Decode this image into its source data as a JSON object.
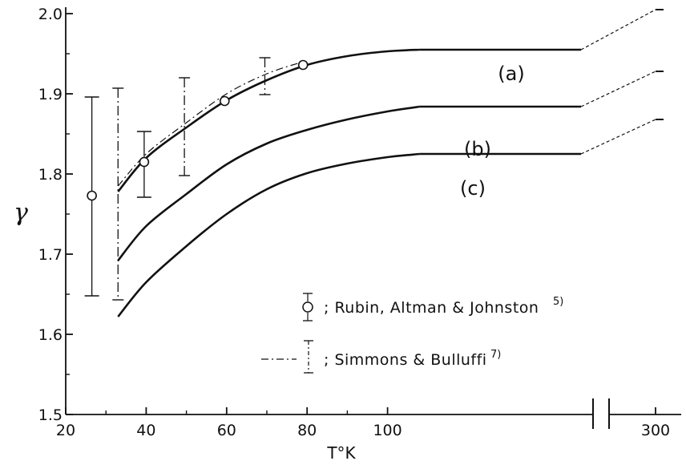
{
  "chart_data": {
    "type": "line",
    "title": "",
    "xlabel": "T°K",
    "ylabel": "γ",
    "ylim": [
      1.5,
      2.0
    ],
    "xlim_main": [
      20,
      108
    ],
    "x_break": "axis broken after 100, continuing to 300",
    "x_ticks": [
      "20",
      "40",
      "60",
      "80",
      "100",
      "300"
    ],
    "y_ticks": [
      "1.5",
      "1.6",
      "1.7",
      "1.8",
      "1.9",
      "2.0"
    ],
    "grid": false,
    "legend_placement": "lower-right",
    "series": [
      {
        "name": "(a)",
        "style": "solid",
        "points": [
          [
            33,
            1.778
          ],
          [
            40,
            1.82
          ],
          [
            50,
            1.858
          ],
          [
            60,
            1.892
          ],
          [
            70,
            1.917
          ],
          [
            80,
            1.936
          ],
          [
            90,
            1.947
          ],
          [
            100,
            1.953
          ],
          [
            108,
            1.955
          ]
        ],
        "extension_to_300": 2.005
      },
      {
        "name": "(b)",
        "style": "solid",
        "points": [
          [
            33,
            1.692
          ],
          [
            40,
            1.735
          ],
          [
            50,
            1.775
          ],
          [
            60,
            1.812
          ],
          [
            70,
            1.838
          ],
          [
            80,
            1.855
          ],
          [
            90,
            1.868
          ],
          [
            100,
            1.878
          ],
          [
            108,
            1.884
          ]
        ],
        "extension_to_300": 1.928
      },
      {
        "name": "(c)",
        "style": "solid",
        "points": [
          [
            33,
            1.622
          ],
          [
            40,
            1.665
          ],
          [
            50,
            1.71
          ],
          [
            60,
            1.75
          ],
          [
            70,
            1.781
          ],
          [
            80,
            1.801
          ],
          [
            90,
            1.813
          ],
          [
            100,
            1.821
          ],
          [
            108,
            1.825
          ]
        ],
        "extension_to_300": 1.868
      },
      {
        "name": "Simmons & Bulluffi",
        "style": "dash-dot",
        "points": [
          [
            33,
            1.785
          ],
          [
            40,
            1.825
          ],
          [
            50,
            1.864
          ],
          [
            60,
            1.9
          ],
          [
            70,
            1.925
          ],
          [
            79,
            1.94
          ]
        ]
      }
    ],
    "rubin_points": [
      {
        "x": 26.5,
        "y": 1.773,
        "lo": 1.648,
        "hi": 1.896
      },
      {
        "x": 39.5,
        "y": 1.815,
        "lo": 1.771,
        "hi": 1.853
      },
      {
        "x": 59.5,
        "y": 1.891
      },
      {
        "x": 79,
        "y": 1.936
      }
    ],
    "simmons_errorbars": [
      {
        "x": 33,
        "lo": 1.643,
        "hi": 1.907
      },
      {
        "x": 49.5,
        "lo": 1.798,
        "hi": 1.92
      },
      {
        "x": 69.5,
        "lo": 1.899,
        "hi": 1.945
      }
    ],
    "legend": [
      {
        "marker": "circle-errorbar",
        "text": "; Rubin, Altman & Johnston",
        "sup": "5)"
      },
      {
        "marker": "dashdot-errorbar",
        "text": "; Simmons & Bulluffi",
        "sup": "7)"
      }
    ]
  }
}
